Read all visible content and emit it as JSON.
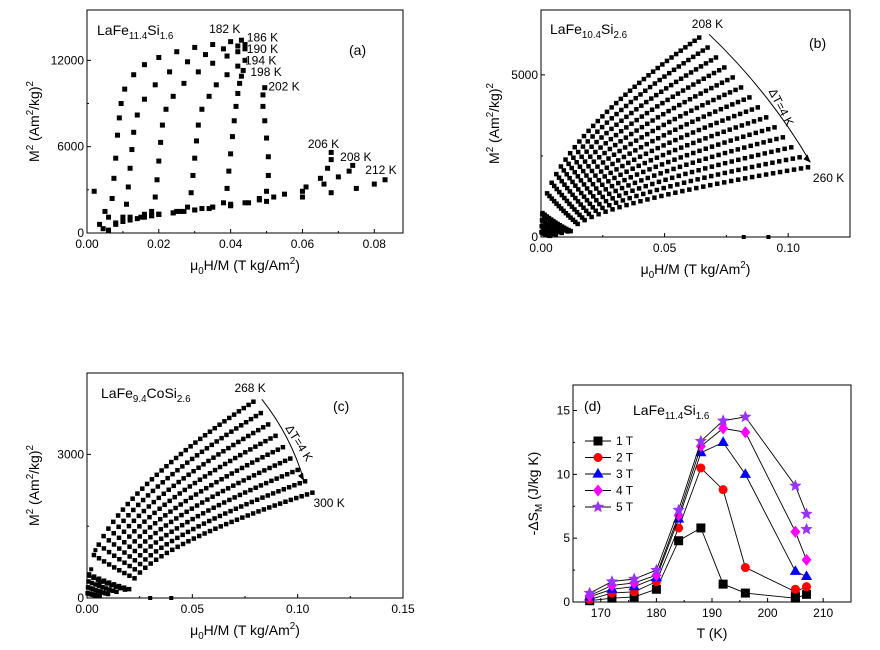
{
  "chart_data": [
    {
      "id": "a",
      "type": "scatter",
      "panel_label": "(a)",
      "title_parts": [
        "LaFe",
        "11.4",
        "Si",
        "1.6"
      ],
      "xlabel_parts": [
        "μ",
        "0",
        "H/M (T kg/Am",
        "2",
        ")"
      ],
      "ylabel_parts": [
        "M",
        "2",
        " (Am",
        "2",
        "/kg)",
        "2"
      ],
      "xlim": [
        0,
        0.088
      ],
      "ylim": [
        0,
        15500
      ],
      "xticks": [
        0.0,
        0.02,
        0.04,
        0.06,
        0.08
      ],
      "xtick_labels": [
        "0.00",
        "0.02",
        "0.04",
        "0.06",
        "0.08"
      ],
      "yticks": [
        0,
        6000,
        12000
      ],
      "ytick_labels": [
        "0",
        "6000",
        "12000"
      ],
      "marker": "square",
      "color": "#000000",
      "series": [
        {
          "name": "182 K",
          "points": [
            [
              0.0045,
              300
            ],
            [
              0.006,
              1100
            ],
            [
              0.007,
              2400
            ],
            [
              0.0075,
              3800
            ],
            [
              0.008,
              5200
            ],
            [
              0.0085,
              6800
            ],
            [
              0.009,
              8000
            ],
            [
              0.0095,
              9000
            ],
            [
              0.0105,
              10000
            ],
            [
              0.013,
              11000
            ],
            [
              0.016,
              11700
            ],
            [
              0.02,
              12200
            ],
            [
              0.025,
              12600
            ],
            [
              0.03,
              12900
            ],
            [
              0.035,
              13100
            ],
            [
              0.04,
              13300
            ],
            [
              0.043,
              13400
            ]
          ]
        },
        {
          "name": "186 K",
          "points": [
            [
              0.006,
              200
            ],
            [
              0.008,
              700
            ],
            [
              0.01,
              1100
            ],
            [
              0.011,
              2000
            ],
            [
              0.0115,
              3200
            ],
            [
              0.012,
              4500
            ],
            [
              0.0125,
              5800
            ],
            [
              0.013,
              7000
            ],
            [
              0.014,
              8200
            ],
            [
              0.016,
              9300
            ],
            [
              0.019,
              10300
            ],
            [
              0.023,
              11200
            ],
            [
              0.028,
              11900
            ],
            [
              0.033,
              12400
            ],
            [
              0.038,
              12800
            ],
            [
              0.042,
              13000
            ],
            [
              0.044,
              13100
            ]
          ]
        },
        {
          "name": "190 K",
          "points": [
            [
              0.008,
              600
            ],
            [
              0.012,
              1100
            ],
            [
              0.016,
              1300
            ],
            [
              0.018,
              1500
            ],
            [
              0.019,
              2500
            ],
            [
              0.0195,
              3700
            ],
            [
              0.02,
              5000
            ],
            [
              0.0205,
              6300
            ],
            [
              0.021,
              7500
            ],
            [
              0.022,
              8600
            ],
            [
              0.024,
              9500
            ],
            [
              0.027,
              10400
            ],
            [
              0.031,
              11200
            ],
            [
              0.035,
              11800
            ],
            [
              0.039,
              12300
            ],
            [
              0.042,
              12600
            ],
            [
              0.044,
              12800
            ]
          ]
        },
        {
          "name": "194 K",
          "points": [
            [
              0.01,
              800
            ],
            [
              0.015,
              1100
            ],
            [
              0.02,
              1300
            ],
            [
              0.025,
              1500
            ],
            [
              0.028,
              1800
            ],
            [
              0.029,
              2800
            ],
            [
              0.0295,
              4000
            ],
            [
              0.03,
              5200
            ],
            [
              0.0305,
              6400
            ],
            [
              0.031,
              7500
            ],
            [
              0.032,
              8600
            ],
            [
              0.034,
              9500
            ],
            [
              0.036,
              10300
            ],
            [
              0.039,
              11000
            ],
            [
              0.042,
              11600
            ],
            [
              0.044,
              12000
            ]
          ]
        },
        {
          "name": "198 K",
          "points": [
            [
              0.012,
              900
            ],
            [
              0.018,
              1200
            ],
            [
              0.024,
              1400
            ],
            [
              0.03,
              1600
            ],
            [
              0.035,
              1800
            ],
            [
              0.038,
              2100
            ],
            [
              0.039,
              3100
            ],
            [
              0.0395,
              4300
            ],
            [
              0.04,
              5500
            ],
            [
              0.0405,
              6700
            ],
            [
              0.041,
              7800
            ],
            [
              0.0415,
              8800
            ],
            [
              0.042,
              9700
            ],
            [
              0.0425,
              10400
            ],
            [
              0.043,
              10900
            ],
            [
              0.0435,
              11300
            ]
          ]
        },
        {
          "name": "202 K",
          "points": [
            [
              0.014,
              1000
            ],
            [
              0.02,
              1300
            ],
            [
              0.027,
              1500
            ],
            [
              0.034,
              1700
            ],
            [
              0.04,
              1900
            ],
            [
              0.045,
              2100
            ],
            [
              0.048,
              2400
            ],
            [
              0.05,
              2900
            ],
            [
              0.0505,
              4000
            ],
            [
              0.0505,
              5300
            ],
            [
              0.05,
              6600
            ],
            [
              0.0495,
              7800
            ],
            [
              0.049,
              8800
            ],
            [
              0.049,
              9600
            ],
            [
              0.0495,
              10100
            ]
          ]
        },
        {
          "name": "206 K",
          "points": [
            [
              0.016,
              1100
            ],
            [
              0.024,
              1400
            ],
            [
              0.032,
              1700
            ],
            [
              0.04,
              2000
            ],
            [
              0.048,
              2300
            ],
            [
              0.055,
              2700
            ],
            [
              0.061,
              3200
            ],
            [
              0.065,
              3800
            ],
            [
              0.067,
              4500
            ],
            [
              0.068,
              5100
            ],
            [
              0.068,
              5600
            ]
          ]
        },
        {
          "name": "208 K",
          "points": [
            [
              0.018,
              1200
            ],
            [
              0.026,
              1500
            ],
            [
              0.035,
              1800
            ],
            [
              0.044,
              2100
            ],
            [
              0.052,
              2500
            ],
            [
              0.06,
              2900
            ],
            [
              0.066,
              3400
            ],
            [
              0.07,
              3900
            ],
            [
              0.073,
              4300
            ],
            [
              0.074,
              4700
            ]
          ]
        },
        {
          "name": "212 K",
          "points": [
            [
              0.02,
              1300
            ],
            [
              0.03,
              1600
            ],
            [
              0.04,
              1900
            ],
            [
              0.05,
              2200
            ],
            [
              0.06,
              2500
            ],
            [
              0.068,
              2800
            ],
            [
              0.075,
              3100
            ],
            [
              0.08,
              3400
            ],
            [
              0.083,
              3700
            ]
          ]
        }
      ],
      "series_labels": [
        {
          "text": "182 K",
          "x": 0.034,
          "y": 13900
        },
        {
          "text": "186 K",
          "x": 0.0445,
          "y": 13300
        },
        {
          "text": "190 K",
          "x": 0.0445,
          "y": 12500
        },
        {
          "text": "194 K",
          "x": 0.044,
          "y": 11700
        },
        {
          "text": "198 K",
          "x": 0.0455,
          "y": 10900
        },
        {
          "text": "202 K",
          "x": 0.0505,
          "y": 9900
        },
        {
          "text": "206 K",
          "x": 0.0615,
          "y": 5900
        },
        {
          "text": "208 K",
          "x": 0.0705,
          "y": 5000
        },
        {
          "text": "212 K",
          "x": 0.0775,
          "y": 4100
        }
      ]
    },
    {
      "id": "b",
      "type": "scatter",
      "panel_label": "(b)",
      "title_parts": [
        "LaFe",
        "10.4",
        "Si",
        "2.6"
      ],
      "xlabel_parts": [
        "μ",
        "0",
        "H/M (T kg/Am",
        "2",
        ")"
      ],
      "ylabel_parts": [
        "M",
        "2",
        " (Am",
        "2",
        "/kg)",
        "2"
      ],
      "xlim": [
        0,
        0.125
      ],
      "ylim": [
        0,
        7000
      ],
      "xticks": [
        0.0,
        0.05,
        0.1
      ],
      "xtick_labels": [
        "0.00",
        "0.05",
        "0.10"
      ],
      "yticks": [
        0,
        5000
      ],
      "ytick_labels": [
        "0",
        "5000"
      ],
      "marker": "square",
      "color": "#000000",
      "curve_family": {
        "t_start": 208,
        "t_end": 260,
        "t_step": 4,
        "x_end_first": 0.064,
        "x_end_last": 0.108,
        "y_end_first": 6150,
        "y_end_last": 2150
      },
      "series_labels": [
        {
          "text": "208 K",
          "x": 0.061,
          "y": 6450
        },
        {
          "text": "260 K",
          "x": 0.11,
          "y": 1700
        }
      ],
      "arrow_label": "ΔT=4 K",
      "arrow": {
        "from": [
          0.068,
          6250
        ],
        "to": [
          0.109,
          2300
        ],
        "label_at": [
          0.092,
          4500
        ]
      }
    },
    {
      "id": "c",
      "type": "scatter",
      "panel_label": "(c)",
      "title_parts": [
        "LaFe",
        "9.4",
        "CoSi",
        "2.6"
      ],
      "xlabel_parts": [
        "μ",
        "0",
        "H/M (T kg/Am",
        "2",
        ")"
      ],
      "ylabel_parts": [
        "M",
        "2",
        " (Am",
        "2",
        "/kg)",
        "2"
      ],
      "xlim": [
        0,
        0.15
      ],
      "ylim": [
        0,
        4700
      ],
      "xticks": [
        0.0,
        0.05,
        0.1,
        0.15
      ],
      "xtick_labels": [
        "0.00",
        "0.05",
        "0.10",
        "0.15"
      ],
      "yticks": [
        0,
        3000
      ],
      "ytick_labels": [
        "0",
        "3000"
      ],
      "marker": "square",
      "color": "#000000",
      "curve_family": {
        "t_start": 268,
        "t_end": 300,
        "t_step": 4,
        "x_end_first": 0.079,
        "x_end_last": 0.107,
        "y_end_first": 4100,
        "y_end_last": 2200
      },
      "series_labels": [
        {
          "text": "268 K",
          "x": 0.07,
          "y": 4300
        },
        {
          "text": "300 K",
          "x": 0.1075,
          "y": 1900
        }
      ],
      "arrow_label": "ΔT=4 K",
      "arrow": {
        "from": [
          0.083,
          4150
        ],
        "to": [
          0.103,
          2450
        ],
        "label_at": [
          0.094,
          3550
        ]
      }
    },
    {
      "id": "d",
      "type": "line",
      "panel_label": "(d)",
      "title_parts": [
        "LaFe",
        "11.4",
        "Si",
        "1.6"
      ],
      "xlabel": "T (K)",
      "ylabel_parts": [
        "-ΔS",
        "M",
        " (J/kg K)"
      ],
      "xlim": [
        165,
        215
      ],
      "ylim": [
        0,
        17
      ],
      "xticks": [
        170,
        180,
        190,
        200,
        210
      ],
      "xtick_labels": [
        "170",
        "180",
        "190",
        "200",
        "210"
      ],
      "yticks": [
        0,
        5,
        10,
        15
      ],
      "ytick_labels": [
        "0",
        "5",
        "10",
        "15"
      ],
      "x": [
        168,
        172,
        176,
        180,
        184,
        188,
        192,
        196,
        205,
        207
      ],
      "series": [
        {
          "name": "1 T",
          "marker": "square",
          "color": "#000000",
          "values": [
            0.1,
            0.3,
            0.4,
            1.0,
            4.8,
            5.8,
            1.4,
            0.7,
            0.3,
            0.6
          ]
        },
        {
          "name": "2 T",
          "marker": "circle",
          "color": "#ff0000",
          "values": [
            0.2,
            0.7,
            0.8,
            1.6,
            5.8,
            10.5,
            8.8,
            2.7,
            0.8,
            1.2
          ]
        },
        {
          "name": "3 T",
          "marker": "triangle",
          "color": "#0000ff",
          "values": [
            0.4,
            1.0,
            1.2,
            1.9,
            6.5,
            11.7,
            12.5,
            10.0,
            2.4,
            2.0
          ]
        },
        {
          "name": "4 T",
          "marker": "diamond",
          "color": "#ff00ff",
          "values": [
            0.5,
            1.3,
            1.5,
            2.1,
            6.8,
            12.2,
            13.6,
            13.3,
            5.5,
            3.3
          ]
        },
        {
          "name": "5 T",
          "marker": "star",
          "color": "#9933ff",
          "values": [
            0.7,
            1.6,
            1.8,
            2.5,
            7.2,
            12.6,
            14.2,
            14.5,
            9.1,
            6.9
          ]
        }
      ],
      "extra_points": [
        {
          "series": "1 T",
          "x": 205,
          "y": 0.4
        },
        {
          "series": "2 T",
          "x": 205,
          "y": 1.0
        },
        {
          "series": "5 T",
          "x": 207,
          "y": 5.7
        }
      ],
      "legend_position": "upper-left"
    }
  ]
}
